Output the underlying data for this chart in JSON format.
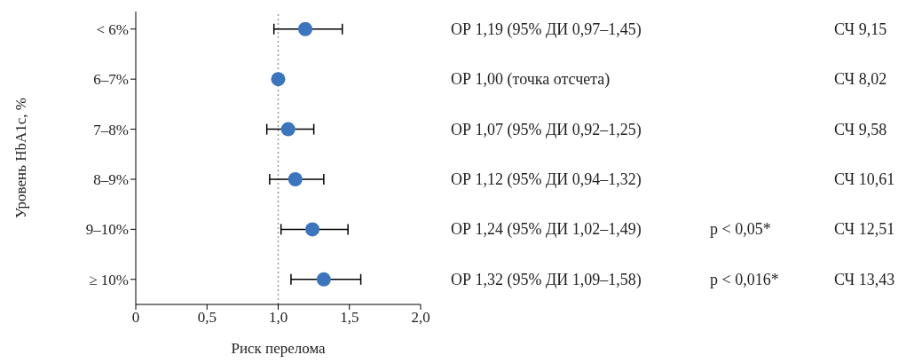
{
  "chart_data": {
    "type": "scatter",
    "ylabel": "Уровень HbA1c, %",
    "xlabel": "Риск перелома",
    "categories": [
      "< 6%",
      "6–7%",
      "7–8%",
      "8–9%",
      "9–10%",
      "≥ 10%"
    ],
    "orientation": "horizontal",
    "series": [
      {
        "color": "#3a75bd",
        "values": [
          1.19,
          1.0,
          1.07,
          1.12,
          1.24,
          1.32
        ],
        "errors": [
          [
            0.97,
            1.45
          ],
          null,
          [
            0.92,
            1.25
          ],
          [
            0.94,
            1.32
          ],
          [
            1.02,
            1.49
          ],
          [
            1.09,
            1.58
          ]
        ]
      }
    ],
    "xlim": [
      0,
      2
    ],
    "xticks": [
      0,
      {
        "value": 0.5,
        "label": "0,5"
      },
      {
        "value": 1,
        "label": "1,0"
      },
      {
        "value": 1.5,
        "label": "1,5"
      },
      {
        "value": 2,
        "label": "2,0"
      }
    ],
    "ref_lines": [
      {
        "axis": "x",
        "value": 1,
        "color": "#999999",
        "line_style": "dotted"
      }
    ],
    "grid": false,
    "marker": "circle",
    "annotations": [
      "ОР 1,19 (95% ДИ 0,97–1,45)",
      "ОР 1,00 (точка отсчета)",
      "ОР 1,07 (95% ДИ 0,92–1,25)",
      "ОР 1,12 (95% ДИ 0,94–1,32)",
      "ОР 1,24 (95% ДИ 1,02–1,49)",
      "ОР 1,32 (95% ДИ 1,09–1,58)",
      "СЧ 9,15",
      "СЧ 8,02",
      "СЧ 9,58",
      "СЧ 10,61",
      "СЧ 12,51",
      "СЧ 13,43",
      "p < 0,05*",
      "p < 0,016*"
    ]
  }
}
